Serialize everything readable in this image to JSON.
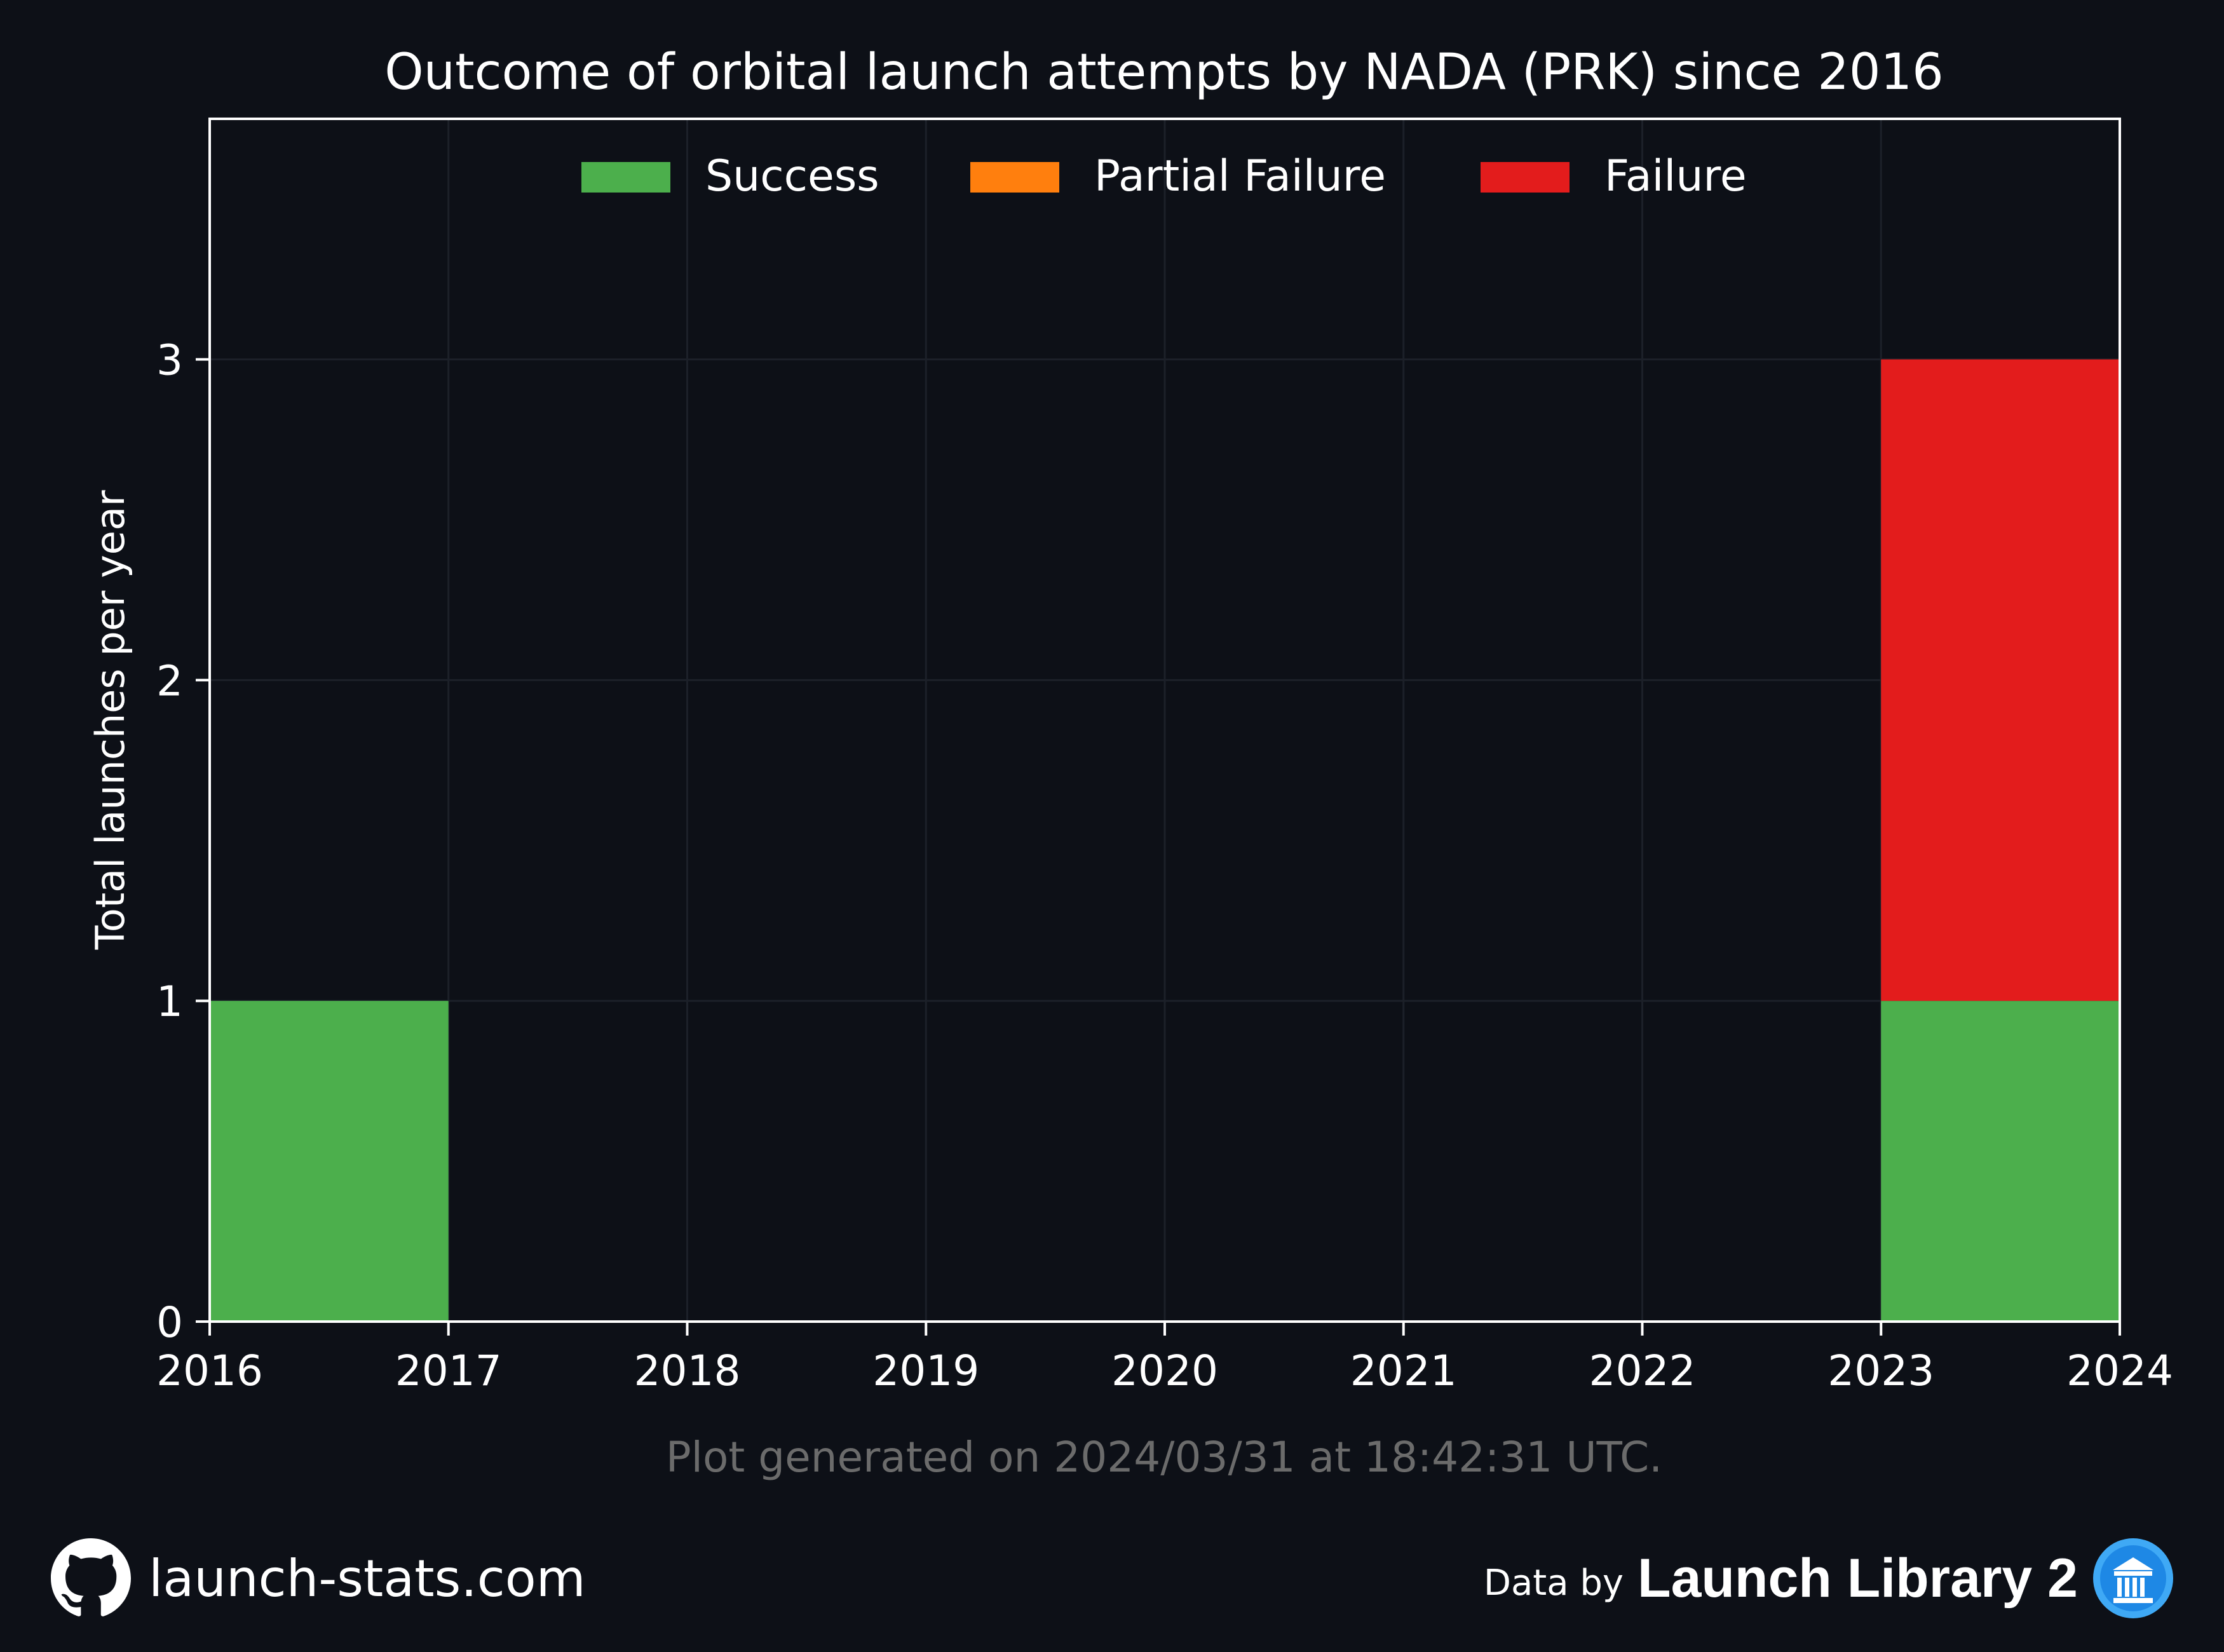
{
  "chart_data": {
    "type": "bar",
    "title": "Outcome of orbital launch attempts by NADA (PRK) since 2016",
    "xlabel": "",
    "ylabel": "Total launches per year",
    "x_ticks": [
      "2016",
      "2017",
      "2018",
      "2019",
      "2020",
      "2021",
      "2022",
      "2023",
      "2024"
    ],
    "y_ticks": [
      "0",
      "1",
      "2",
      "3"
    ],
    "xlim": [
      2016,
      2024
    ],
    "ylim": [
      0,
      3.75
    ],
    "stacked": true,
    "grid": true,
    "legend_position": "top-center",
    "categories": [
      2016,
      2017,
      2018,
      2019,
      2020,
      2021,
      2022,
      2023
    ],
    "series": [
      {
        "name": "Success",
        "color": "#4caf4c",
        "values": [
          1,
          0,
          0,
          0,
          0,
          0,
          0,
          1
        ]
      },
      {
        "name": "Partial Failure",
        "color": "#ff7f0e",
        "values": [
          0,
          0,
          0,
          0,
          0,
          0,
          0,
          0
        ]
      },
      {
        "name": "Failure",
        "color": "#e31c1c",
        "values": [
          0,
          0,
          0,
          0,
          0,
          0,
          0,
          2
        ]
      }
    ]
  },
  "footnote": "Plot generated on 2024/03/31 at 18:42:31 UTC.",
  "footer": {
    "site": "launch-stats.com",
    "site_icon": "github-icon",
    "data_by": "Data by",
    "provider": "Launch Library 2",
    "provider_icon": "launch-library-logo"
  }
}
